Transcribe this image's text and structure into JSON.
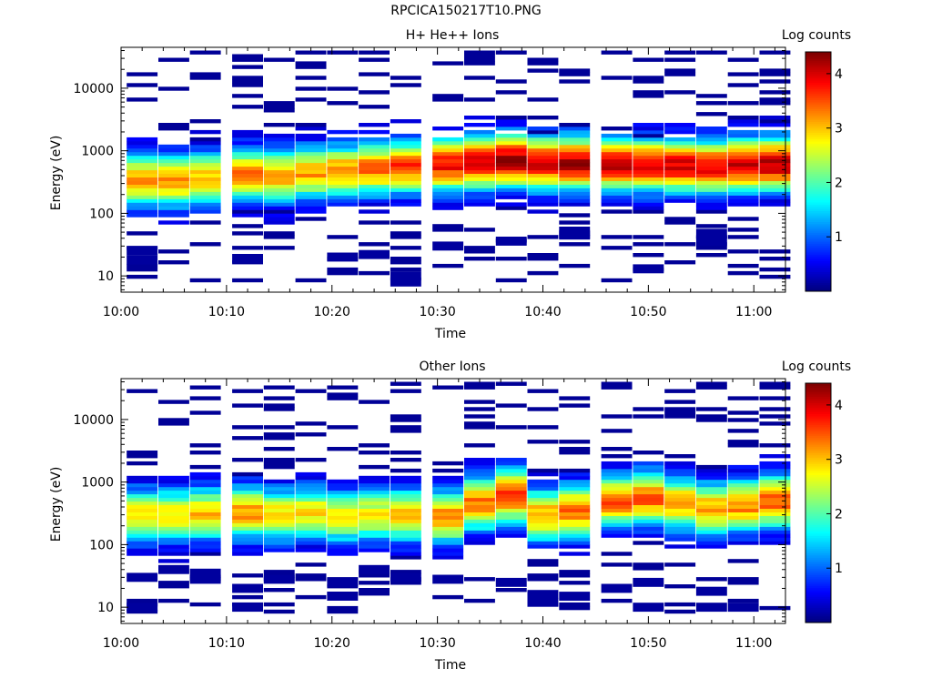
{
  "page_title": "RPCICA150217T10.PNG",
  "chart_data": [
    {
      "type": "heatmap",
      "title": "H+ He++ Ions",
      "xlabel": "Time",
      "ylabel": "Energy (eV)",
      "colorbar_label": "Log counts",
      "colorbar_ticks": [
        1,
        2,
        3,
        4
      ],
      "colorbar_range": [
        0,
        4.4
      ],
      "y_scale": "log",
      "ylim": [
        5.5,
        45000
      ],
      "y_ticks": [
        10,
        100,
        1000,
        10000
      ],
      "y_tick_labels": [
        "10",
        "100",
        "1000",
        "10000"
      ],
      "xlim": [
        "10:00",
        "11:03"
      ],
      "x_tick_labels": [
        "10:00",
        "10:10",
        "10:20",
        "10:30",
        "10:40",
        "10:50",
        "11:00"
      ],
      "time_bins": [
        "10:02",
        "10:05",
        "10:08",
        "10:12",
        "10:15",
        "10:18",
        "10:21",
        "10:24",
        "10:27",
        "10:31",
        "10:34",
        "10:37",
        "10:40",
        "10:43",
        "10:47",
        "10:50",
        "10:53",
        "10:56",
        "10:59",
        "11:02"
      ],
      "energy_peak_eV": [
        350,
        340,
        380,
        420,
        400,
        450,
        480,
        520,
        560,
        600,
        650,
        700,
        650,
        640,
        620,
        600,
        580,
        560,
        600,
        620
      ],
      "peak_log_counts": [
        3.2,
        3.2,
        3.0,
        3.3,
        3.1,
        3.2,
        3.3,
        3.4,
        3.6,
        3.8,
        4.0,
        4.3,
        4.1,
        4.2,
        4.2,
        4.0,
        4.0,
        3.9,
        4.0,
        4.2
      ],
      "low_counts_eV": [
        [
          18,
          25
        ],
        [],
        [],
        [
          19
        ],
        [],
        [],
        [
          20
        ],
        [
          22
        ],
        [
          8,
          10
        ],
        [
          30
        ],
        [],
        [
          36
        ],
        [],
        [
          45,
          52
        ],
        [],
        [
          13
        ],
        [],
        [
          48,
          36
        ],
        [],
        []
      ]
    },
    {
      "type": "heatmap",
      "title": "Other Ions",
      "xlabel": "Time",
      "ylabel": "Energy (eV)",
      "colorbar_label": "Log counts",
      "colorbar_ticks": [
        1,
        2,
        3,
        4
      ],
      "colorbar_range": [
        0,
        4.4
      ],
      "y_scale": "log",
      "ylim": [
        5.5,
        45000
      ],
      "y_ticks": [
        10,
        100,
        1000,
        10000
      ],
      "y_tick_labels": [
        "10",
        "100",
        "1000",
        "10000"
      ],
      "xlim": [
        "10:00",
        "11:03"
      ],
      "x_tick_labels": [
        "10:00",
        "10:10",
        "10:20",
        "10:30",
        "10:40",
        "10:50",
        "11:00"
      ],
      "time_bins": [
        "10:02",
        "10:05",
        "10:08",
        "10:12",
        "10:15",
        "10:18",
        "10:21",
        "10:24",
        "10:27",
        "10:31",
        "10:34",
        "10:37",
        "10:40",
        "10:43",
        "10:47",
        "10:50",
        "10:53",
        "10:56",
        "10:59",
        "11:02"
      ],
      "energy_peak_eV": [
        300,
        300,
        320,
        330,
        300,
        320,
        280,
        300,
        300,
        280,
        450,
        600,
        300,
        350,
        500,
        560,
        450,
        380,
        430,
        500
      ],
      "peak_log_counts": [
        2.9,
        2.9,
        3.0,
        3.2,
        2.9,
        2.9,
        2.7,
        2.8,
        3.0,
        3.3,
        3.4,
        3.7,
        3.2,
        3.4,
        3.5,
        3.5,
        3.2,
        3.2,
        3.3,
        3.5
      ],
      "low_counts_eV": [
        [
          10,
          30
        ],
        [
          40
        ],
        [
          35,
          28
        ],
        [
          10,
          20
        ],
        [
          28
        ],
        [],
        [
          15,
          25
        ],
        [
          40
        ],
        [
          30
        ],
        [
          28
        ],
        [],
        [
          25
        ],
        [
          12,
          16
        ],
        [
          15
        ],
        [
          20
        ],
        [
          10,
          25
        ],
        [],
        [
          18,
          10
        ],
        [
          10
        ],
        []
      ]
    }
  ]
}
